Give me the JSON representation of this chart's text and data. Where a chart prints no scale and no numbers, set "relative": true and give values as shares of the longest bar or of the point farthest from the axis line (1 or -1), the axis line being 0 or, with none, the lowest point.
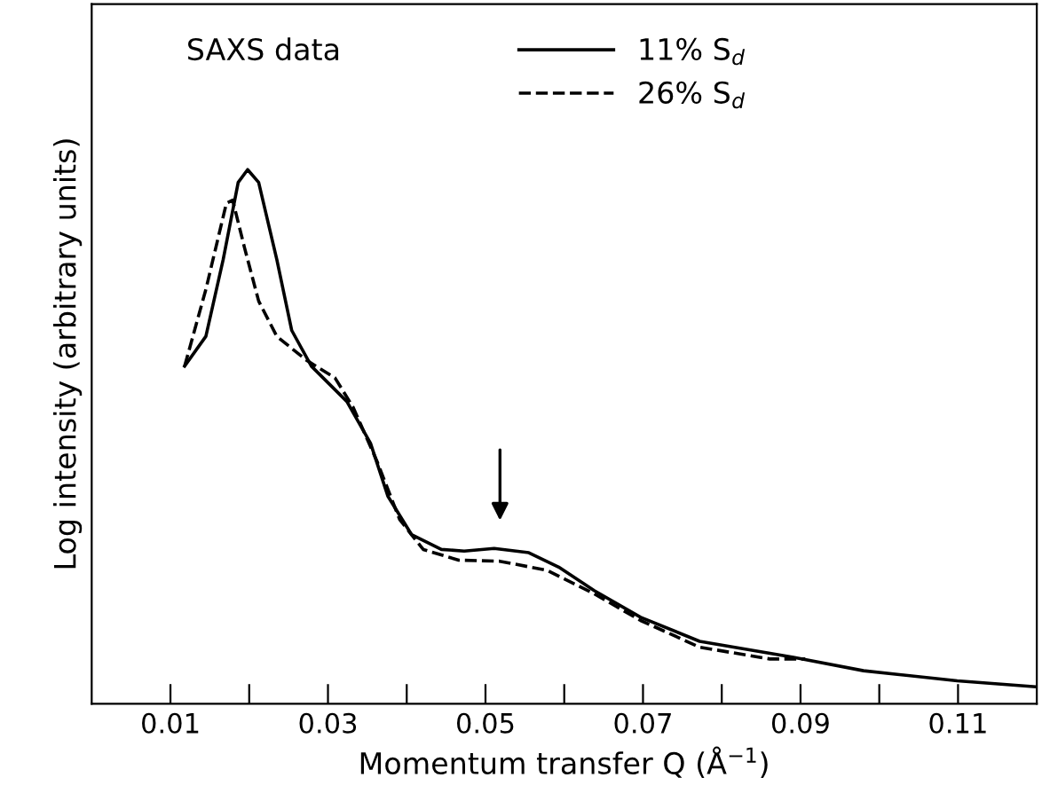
{
  "chart_data": {
    "type": "line",
    "relative": true,
    "xlabel": "Momentum transfer Q (Å$^{−1}$)",
    "ylabel": "Log intensity (arbitrary units)",
    "annotations": [
      "SAXS data"
    ],
    "xlim": [
      0.0,
      0.12
    ],
    "xticks": [
      {
        "value": 0.01,
        "label": "0.01"
      },
      {
        "value": 0.02,
        "label": null
      },
      {
        "value": 0.03,
        "label": "0.03"
      },
      {
        "value": 0.04,
        "label": null
      },
      {
        "value": 0.05,
        "label": "0.05"
      },
      {
        "value": 0.06,
        "label": null
      },
      {
        "value": 0.07,
        "label": "0.07"
      },
      {
        "value": 0.08,
        "label": null
      },
      {
        "value": 0.09,
        "label": "0.09"
      },
      {
        "value": 0.1,
        "label": null
      },
      {
        "value": 0.11,
        "label": "0.11"
      }
    ],
    "tick_labels": "x",
    "grid": false,
    "legend": "top right",
    "marker": "none",
    "series": [
      {
        "name": "11% S$_{d}$",
        "color": "#000000",
        "line_style": "solid",
        "x": [
          0.0118,
          0.0145,
          0.0167,
          0.0186,
          0.0198,
          0.0212,
          0.0235,
          0.0254,
          0.0279,
          0.0324,
          0.0354,
          0.0376,
          0.0406,
          0.0444,
          0.0473,
          0.0511,
          0.0555,
          0.0593,
          0.0638,
          0.0697,
          0.0772,
          0.0891,
          0.098,
          0.1099,
          0.1197
        ],
        "values": [
          0.632,
          0.688,
          0.832,
          0.976,
          1.0,
          0.976,
          0.832,
          0.699,
          0.632,
          0.566,
          0.488,
          0.389,
          0.317,
          0.289,
          0.286,
          0.291,
          0.283,
          0.256,
          0.212,
          0.162,
          0.117,
          0.087,
          0.062,
          0.043,
          0.032
        ]
      },
      {
        "name": "26% S$_{d}$",
        "color": "#000000",
        "line_style": "dashed",
        "x": [
          0.0118,
          0.0145,
          0.0171,
          0.0179,
          0.0194,
          0.0212,
          0.0235,
          0.0272,
          0.0309,
          0.0332,
          0.0362,
          0.0391,
          0.0421,
          0.0466,
          0.0518,
          0.0578,
          0.0638,
          0.0697,
          0.0772,
          0.0861,
          0.0906
        ],
        "values": [
          0.632,
          0.776,
          0.937,
          0.943,
          0.854,
          0.754,
          0.688,
          0.644,
          0.61,
          0.555,
          0.455,
          0.345,
          0.289,
          0.269,
          0.267,
          0.25,
          0.206,
          0.156,
          0.106,
          0.084,
          0.084
        ]
      }
    ]
  }
}
